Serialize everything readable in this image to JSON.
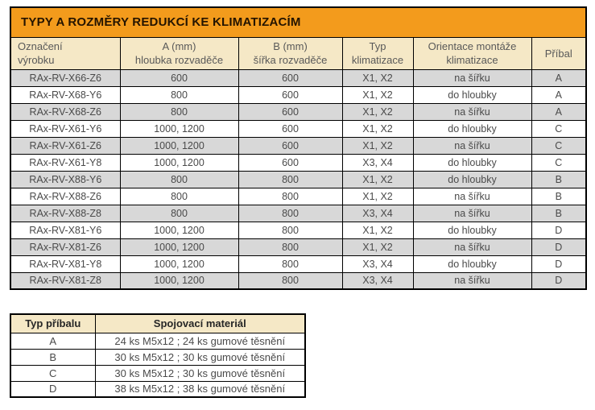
{
  "colors": {
    "title_bg": "#F39B1C",
    "header_bg": "#F5E8C6",
    "row_alt_bg": "#D8D8D8",
    "row_bg": "#FFFFFF",
    "border_color": "#000000",
    "text_color": "#4A4A4A",
    "header_text": "#595959",
    "title_text": "#241400",
    "acc_header_text": "#262626",
    "page_bg": "#FFFFFF"
  },
  "main_table": {
    "title": "TYPY A ROZMĚRY REDUKCÍ KE KLIMATIZACÍM",
    "headers": [
      {
        "lines": [
          "Označení",
          "výrobku"
        ]
      },
      {
        "lines": [
          "A (mm)",
          "hloubka rozvaděče"
        ]
      },
      {
        "lines": [
          "B (mm)",
          "šířka rozvaděče"
        ]
      },
      {
        "lines": [
          "Typ",
          "klimatizace"
        ]
      },
      {
        "lines": [
          "Orientace montáže",
          "klimatizace"
        ]
      },
      {
        "lines": [
          "Příbal"
        ]
      }
    ],
    "rows": [
      [
        "RAx-RV-X66-Z6",
        "600",
        "600",
        "X1, X2",
        "na šířku",
        "A"
      ],
      [
        "RAx-RV-X68-Y6",
        "800",
        "600",
        "X1, X2",
        "do hloubky",
        "A"
      ],
      [
        "RAx-RV-X68-Z6",
        "800",
        "600",
        "X1, X2",
        "na šířku",
        "A"
      ],
      [
        "RAx-RV-X61-Y6",
        "1000, 1200",
        "600",
        "X1, X2",
        "do hloubky",
        "C"
      ],
      [
        "RAx-RV-X61-Z6",
        "1000, 1200",
        "600",
        "X1, X2",
        "na šířku",
        "C"
      ],
      [
        "RAx-RV-X61-Y8",
        "1000, 1200",
        "600",
        "X3, X4",
        "do hloubky",
        "C"
      ],
      [
        "RAx-RV-X88-Y6",
        "800",
        "800",
        "X1, X2",
        "do hloubky",
        "B"
      ],
      [
        "RAx-RV-X88-Z6",
        "800",
        "800",
        "X1, X2",
        "na šířku",
        "B"
      ],
      [
        "RAx-RV-X88-Z8",
        "800",
        "800",
        "X3, X4",
        "na šířku",
        "B"
      ],
      [
        "RAx-RV-X81-Y6",
        "1000, 1200",
        "800",
        "X1, X2",
        "do hloubky",
        "D"
      ],
      [
        "RAx-RV-X81-Z6",
        "1000, 1200",
        "800",
        "X1, X2",
        "na šířku",
        "D"
      ],
      [
        "RAx-RV-X81-Y8",
        "1000, 1200",
        "800",
        "X3, X4",
        "do hloubky",
        "D"
      ],
      [
        "RAx-RV-X81-Z8",
        "1000, 1200",
        "800",
        "X3, X4",
        "na šířku",
        "D"
      ]
    ]
  },
  "accessory_table": {
    "headers": [
      "Typ příbalu",
      "Spojovací materiál"
    ],
    "rows": [
      [
        "A",
        "24 ks M5x12 ; 24 ks gumové těsnění"
      ],
      [
        "B",
        "30 ks M5x12 ; 30 ks gumové těsnění"
      ],
      [
        "C",
        "30 ks M5x12 ; 30 ks gumové těsnění"
      ],
      [
        "D",
        "38 ks M5x12 ; 38 ks gumové těsnění"
      ]
    ]
  }
}
